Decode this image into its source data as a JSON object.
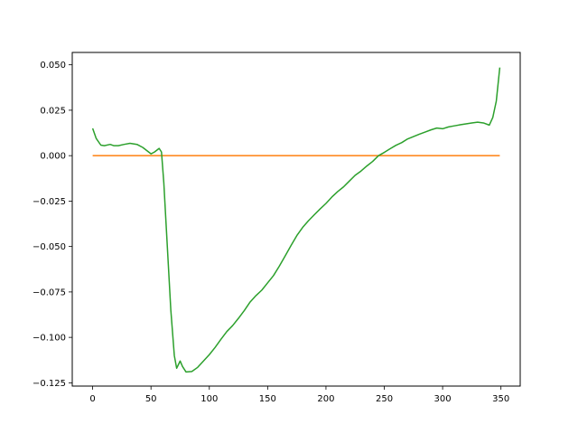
{
  "chart_data": {
    "type": "line",
    "title": "",
    "xlabel": "",
    "ylabel": "",
    "xlim": [
      -17.5,
      366.5
    ],
    "ylim": [
      -0.1268,
      0.0568
    ],
    "xticks": [
      0,
      50,
      100,
      150,
      200,
      250,
      300,
      350
    ],
    "yticks": [
      -0.125,
      -0.1,
      -0.075,
      -0.05,
      -0.025,
      0.0,
      0.025,
      0.05
    ],
    "xtick_labels": [
      "0",
      "50",
      "100",
      "150",
      "200",
      "250",
      "300",
      "350"
    ],
    "ytick_labels": [
      "−0.125",
      "−0.100",
      "−0.075",
      "−0.050",
      "−0.025",
      "0.000",
      "0.025",
      "0.050"
    ],
    "grid": false,
    "series": [
      {
        "color": "#ff7f0e",
        "x": [
          0,
          349
        ],
        "y": [
          0.0,
          0.0
        ]
      },
      {
        "color": "#2ca02c",
        "x": [
          0,
          3,
          7,
          10,
          15,
          18,
          22,
          27,
          32,
          38,
          43,
          47,
          50,
          53,
          57,
          59,
          61,
          64,
          67,
          70,
          72,
          75,
          77,
          80,
          85,
          90,
          95,
          100,
          105,
          110,
          115,
          120,
          125,
          130,
          135,
          140,
          145,
          150,
          155,
          160,
          165,
          170,
          175,
          180,
          185,
          190,
          195,
          200,
          205,
          210,
          215,
          220,
          225,
          230,
          235,
          240,
          245,
          250,
          255,
          260,
          265,
          270,
          275,
          280,
          285,
          290,
          295,
          300,
          305,
          310,
          315,
          320,
          325,
          330,
          335,
          340,
          343,
          346,
          349
        ],
        "y": [
          0.015,
          0.0095,
          0.0058,
          0.0055,
          0.0062,
          0.0055,
          0.0055,
          0.0062,
          0.0068,
          0.0062,
          0.0045,
          0.0025,
          0.001,
          0.002,
          0.004,
          0.002,
          -0.015,
          -0.05,
          -0.085,
          -0.11,
          -0.117,
          -0.113,
          -0.116,
          -0.119,
          -0.1188,
          -0.1165,
          -0.113,
          -0.1095,
          -0.1055,
          -0.101,
          -0.0968,
          -0.0935,
          -0.0895,
          -0.0852,
          -0.0805,
          -0.077,
          -0.074,
          -0.07,
          -0.066,
          -0.0608,
          -0.0552,
          -0.0495,
          -0.044,
          -0.0395,
          -0.0358,
          -0.0325,
          -0.0293,
          -0.0263,
          -0.0228,
          -0.0198,
          -0.0172,
          -0.014,
          -0.0108,
          -0.0085,
          -0.0057,
          -0.0032,
          0.0,
          0.0018,
          0.0038,
          0.0057,
          0.0072,
          0.0092,
          0.0105,
          0.0118,
          0.013,
          0.0142,
          0.0152,
          0.0148,
          0.0158,
          0.0164,
          0.017,
          0.0175,
          0.018,
          0.0184,
          0.018,
          0.0168,
          0.021,
          0.03,
          0.0485
        ]
      }
    ]
  }
}
